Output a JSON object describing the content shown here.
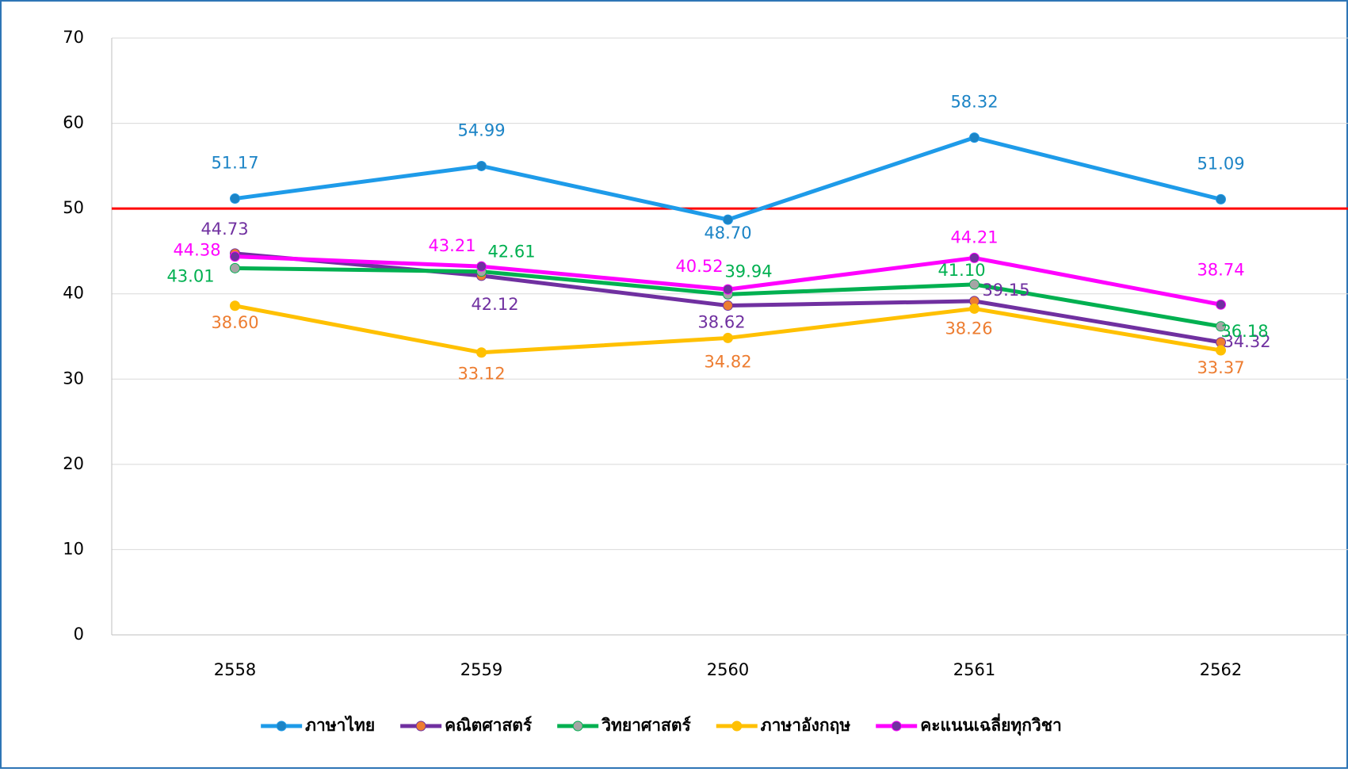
{
  "chart_data": {
    "type": "line",
    "categories": [
      "2558",
      "2559",
      "2560",
      "2561",
      "2562"
    ],
    "series": [
      {
        "name": "ภาษาไทย",
        "color": "#1e9be9",
        "marker_color": "#1c84c6",
        "label_color": "#1c84c6",
        "values": [
          51.17,
          54.99,
          48.7,
          58.32,
          51.09
        ],
        "value_labels": [
          "51.17",
          "54.99",
          "48.70",
          "58.32",
          "51.09"
        ]
      },
      {
        "name": "คณิตศาสตร์",
        "color": "#7030a0",
        "marker_color": "#ed7d31",
        "label_color": "#7030a0",
        "values": [
          44.73,
          42.12,
          38.62,
          39.15,
          34.32
        ],
        "value_labels": [
          "44.73",
          "42.12",
          "38.62",
          "39.15",
          "34.32"
        ]
      },
      {
        "name": "วิทยาศาสตร์",
        "color": "#00b050",
        "marker_color": "#a5a5a5",
        "label_color": "#00b050",
        "values": [
          43.01,
          42.61,
          39.94,
          41.1,
          36.18
        ],
        "value_labels": [
          "43.01",
          "42.61",
          "39.94",
          "41.10",
          "36.18"
        ]
      },
      {
        "name": "ภาษาอังกฤษ",
        "color": "#ffc000",
        "marker_color": "#ffc000",
        "label_color": "#ed7d31",
        "values": [
          38.6,
          33.12,
          34.82,
          38.26,
          33.37
        ],
        "value_labels": [
          "38.60",
          "33.12",
          "34.82",
          "38.26",
          "33.37"
        ]
      },
      {
        "name": "คะแนนเฉลี่ยทุกวิชา",
        "color": "#ff00ff",
        "marker_color": "#7030a0",
        "label_color": "#ff00ff",
        "values": [
          44.38,
          43.21,
          40.52,
          44.21,
          38.74
        ],
        "value_labels": [
          "44.38",
          "43.21",
          "40.52",
          "44.21",
          "38.74"
        ]
      }
    ],
    "reference_line": {
      "value": 50,
      "color": "#ff0000"
    },
    "ylim": [
      0,
      70
    ],
    "yticks": [
      0,
      10,
      20,
      30,
      40,
      50,
      60,
      70
    ],
    "grid": true,
    "legend": "bottom"
  }
}
